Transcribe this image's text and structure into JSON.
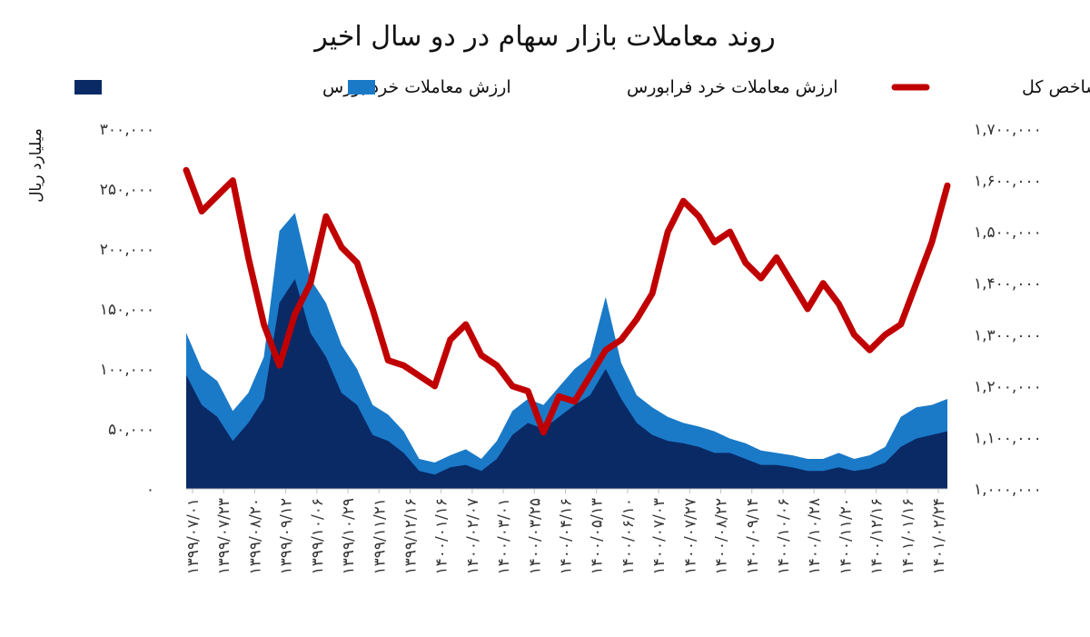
{
  "chart_data": {
    "type": "area",
    "title": "روند معاملات بازار سهام در دو سال اخیر",
    "ylabel_left": "میلیارد ریال",
    "ylabel_right": "",
    "xlabel": "",
    "ylim_left": [
      0,
      300000
    ],
    "ylim_right": [
      1000000,
      1700000
    ],
    "y_ticks_left": [
      "۳۰۰,۰۰۰",
      "۲۵۰,۰۰۰",
      "۲۰۰,۰۰۰",
      "۱۵۰,۰۰۰",
      "۱۰۰,۰۰۰",
      "۵۰,۰۰۰",
      "۰"
    ],
    "y_ticks_right": [
      "۱,۷۰۰,۰۰۰",
      "۱,۶۰۰,۰۰۰",
      "۱,۵۰۰,۰۰۰",
      "۱,۴۰۰,۰۰۰",
      "۱,۳۰۰,۰۰۰",
      "۱,۲۰۰,۰۰۰",
      "۱,۱۰۰,۰۰۰",
      "۱,۰۰۰,۰۰۰"
    ],
    "x_ticks": [
      "۱۳۹۹/۰۷/۰۱",
      "۱۳۹۹/۰۷/۲۳",
      "۱۳۹۹/۰۸/۲۰",
      "۱۳۹۹/۰۹/۱۲",
      "۱۳۹۹/۱۰/۰۶",
      "۱۳۹۹/۱۰/۲۹",
      "۱۳۹۹/۱۱/۲۱",
      "۱۳۹۹/۱۲/۱۶",
      "۱۴۰۰/۰۱/۱۶",
      "۱۴۰۰/۰۲/۰۷",
      "۱۴۰۰/۰۳/۰۱",
      "۱۴۰۰/۰۳/۲۵",
      "۱۴۰۰/۰۴/۱۶",
      "۱۴۰۰/۰۵/۱۳",
      "۱۴۰۰/۰۶/۱۰",
      "۱۴۰۰/۰۷/۰۳",
      "۱۴۰۰/۰۷/۲۷",
      "۱۴۰۰/۰۸/۲۲",
      "۱۴۰۰/۰۹/۱۴",
      "۱۴۰۰/۱۰/۰۶",
      "۱۴۰۰/۱۰/۲۸",
      "۱۴۰۰/۱۱/۲۰",
      "۱۴۰۰/۱۲/۱۶",
      "۱۴۰۱/۰۱/۱۶",
      "۱۴۰۱/۰۲/۲۴"
    ],
    "legend_position": "top",
    "grid": false,
    "series": [
      {
        "name": "ارزش معاملات خرد بورس",
        "kind": "area",
        "axis": "left",
        "color": "#0a2a66",
        "values": [
          95000,
          70000,
          60000,
          40000,
          55000,
          75000,
          155000,
          175000,
          130000,
          110000,
          80000,
          70000,
          45000,
          40000,
          30000,
          15000,
          12000,
          18000,
          20000,
          15000,
          25000,
          45000,
          55000,
          50000,
          60000,
          70000,
          78000,
          100000,
          75000,
          55000,
          45000,
          40000,
          38000,
          35000,
          30000,
          30000,
          25000,
          20000,
          20000,
          18000,
          15000,
          15000,
          18000,
          15000,
          17000,
          22000,
          35000,
          42000,
          45000,
          48000
        ]
      },
      {
        "name": "ارزش معاملات خرد فرابورس",
        "kind": "area",
        "axis": "left",
        "color": "#1a7ac8",
        "values": [
          130000,
          100000,
          90000,
          65000,
          80000,
          110000,
          215000,
          230000,
          175000,
          155000,
          120000,
          100000,
          70000,
          62000,
          48000,
          25000,
          22000,
          28000,
          33000,
          25000,
          40000,
          65000,
          75000,
          70000,
          85000,
          100000,
          110000,
          160000,
          105000,
          78000,
          68000,
          60000,
          55000,
          52000,
          48000,
          42000,
          38000,
          32000,
          30000,
          28000,
          25000,
          25000,
          30000,
          25000,
          28000,
          35000,
          60000,
          68000,
          70000,
          75000
        ]
      },
      {
        "name": "شاخص کل",
        "kind": "line",
        "axis": "right",
        "color": "#c00000",
        "values": [
          1620000,
          1540000,
          1570000,
          1600000,
          1450000,
          1320000,
          1240000,
          1340000,
          1400000,
          1530000,
          1470000,
          1440000,
          1350000,
          1250000,
          1240000,
          1220000,
          1200000,
          1290000,
          1320000,
          1260000,
          1240000,
          1200000,
          1190000,
          1110000,
          1180000,
          1170000,
          1220000,
          1270000,
          1290000,
          1330000,
          1380000,
          1500000,
          1560000,
          1530000,
          1480000,
          1500000,
          1440000,
          1410000,
          1450000,
          1400000,
          1350000,
          1400000,
          1360000,
          1300000,
          1270000,
          1300000,
          1320000,
          1400000,
          1480000,
          1590000
        ]
      }
    ]
  }
}
